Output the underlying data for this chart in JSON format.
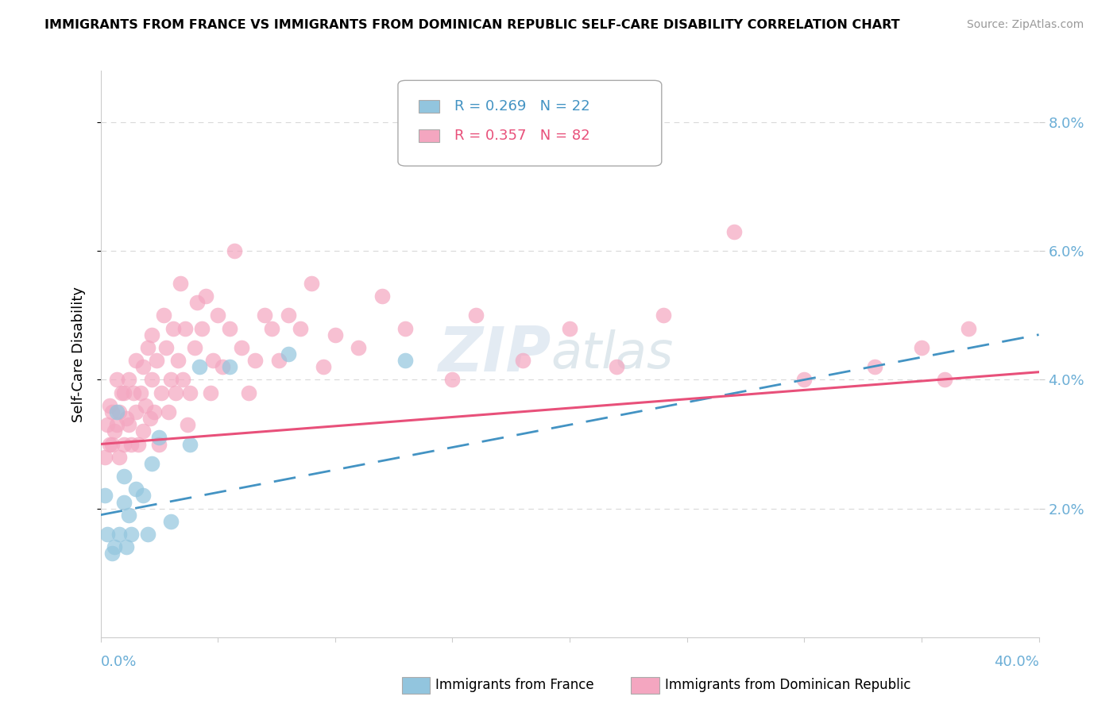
{
  "title": "IMMIGRANTS FROM FRANCE VS IMMIGRANTS FROM DOMINICAN REPUBLIC SELF-CARE DISABILITY CORRELATION CHART",
  "source": "Source: ZipAtlas.com",
  "ylabel": "Self-Care Disability",
  "xmin": 0.0,
  "xmax": 0.4,
  "ymin": 0.0,
  "ymax": 0.088,
  "france_color": "#92c5de",
  "dr_color": "#f4a6c0",
  "france_line_color": "#4393c3",
  "dr_line_color": "#e8507a",
  "tick_color": "#6baed6",
  "grid_color": "#d9d9d9",
  "france_x": [
    0.002,
    0.003,
    0.005,
    0.006,
    0.007,
    0.008,
    0.01,
    0.01,
    0.011,
    0.012,
    0.013,
    0.015,
    0.018,
    0.02,
    0.022,
    0.025,
    0.03,
    0.038,
    0.042,
    0.055,
    0.08,
    0.13
  ],
  "france_y": [
    0.022,
    0.016,
    0.013,
    0.014,
    0.035,
    0.016,
    0.021,
    0.025,
    0.014,
    0.019,
    0.016,
    0.023,
    0.022,
    0.016,
    0.027,
    0.031,
    0.018,
    0.03,
    0.042,
    0.042,
    0.044,
    0.043
  ],
  "dr_x": [
    0.002,
    0.003,
    0.004,
    0.004,
    0.005,
    0.005,
    0.006,
    0.007,
    0.007,
    0.008,
    0.008,
    0.009,
    0.01,
    0.01,
    0.011,
    0.012,
    0.012,
    0.013,
    0.014,
    0.015,
    0.015,
    0.016,
    0.017,
    0.018,
    0.018,
    0.019,
    0.02,
    0.021,
    0.022,
    0.022,
    0.023,
    0.024,
    0.025,
    0.026,
    0.027,
    0.028,
    0.029,
    0.03,
    0.031,
    0.032,
    0.033,
    0.034,
    0.035,
    0.036,
    0.037,
    0.038,
    0.04,
    0.041,
    0.043,
    0.045,
    0.047,
    0.048,
    0.05,
    0.052,
    0.055,
    0.057,
    0.06,
    0.063,
    0.066,
    0.07,
    0.073,
    0.076,
    0.08,
    0.085,
    0.09,
    0.095,
    0.1,
    0.11,
    0.12,
    0.13,
    0.15,
    0.16,
    0.18,
    0.2,
    0.22,
    0.24,
    0.27,
    0.3,
    0.33,
    0.35,
    0.36,
    0.37
  ],
  "dr_y": [
    0.028,
    0.033,
    0.03,
    0.036,
    0.03,
    0.035,
    0.032,
    0.033,
    0.04,
    0.035,
    0.028,
    0.038,
    0.03,
    0.038,
    0.034,
    0.033,
    0.04,
    0.03,
    0.038,
    0.035,
    0.043,
    0.03,
    0.038,
    0.032,
    0.042,
    0.036,
    0.045,
    0.034,
    0.04,
    0.047,
    0.035,
    0.043,
    0.03,
    0.038,
    0.05,
    0.045,
    0.035,
    0.04,
    0.048,
    0.038,
    0.043,
    0.055,
    0.04,
    0.048,
    0.033,
    0.038,
    0.045,
    0.052,
    0.048,
    0.053,
    0.038,
    0.043,
    0.05,
    0.042,
    0.048,
    0.06,
    0.045,
    0.038,
    0.043,
    0.05,
    0.048,
    0.043,
    0.05,
    0.048,
    0.055,
    0.042,
    0.047,
    0.045,
    0.053,
    0.048,
    0.04,
    0.05,
    0.043,
    0.048,
    0.042,
    0.05,
    0.063,
    0.04,
    0.042,
    0.045,
    0.04,
    0.048
  ],
  "france_slope": 0.07,
  "france_intercept": 0.019,
  "dr_slope": 0.028,
  "dr_intercept": 0.03
}
